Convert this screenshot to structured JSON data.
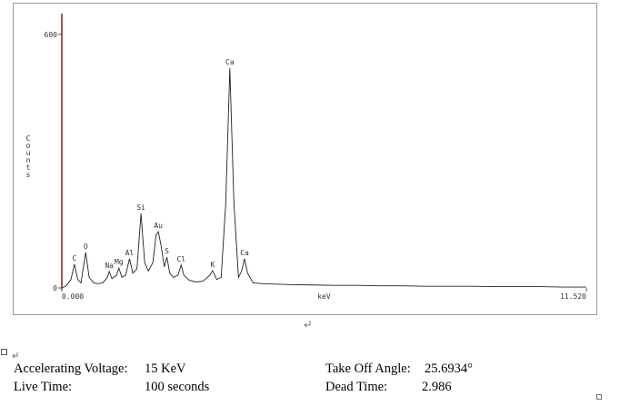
{
  "chart_data": {
    "type": "line",
    "ylabel": "Counts",
    "xlabel": "keV",
    "x": [
      0.0,
      0.1,
      0.2,
      0.277,
      0.35,
      0.42,
      0.525,
      0.6,
      0.7,
      0.8,
      0.9,
      1.0,
      1.041,
      1.1,
      1.2,
      1.253,
      1.32,
      1.4,
      1.486,
      1.56,
      1.65,
      1.739,
      1.82,
      1.9,
      2.0,
      2.07,
      2.12,
      2.18,
      2.25,
      2.307,
      2.37,
      2.45,
      2.55,
      2.621,
      2.68,
      2.8,
      2.95,
      3.1,
      3.25,
      3.312,
      3.4,
      3.5,
      3.6,
      3.69,
      3.78,
      3.88,
      3.95,
      4.012,
      4.08,
      4.2,
      4.4,
      4.7,
      5.0,
      5.5,
      6.0,
      6.5,
      7.0,
      7.5,
      8.0,
      8.5,
      9.0,
      9.5,
      10.0,
      10.5,
      11.0,
      11.52
    ],
    "values": [
      0,
      5,
      20,
      56,
      20,
      12,
      84,
      25,
      12,
      10,
      12,
      25,
      39,
      22,
      30,
      47,
      25,
      30,
      69,
      35,
      45,
      176,
      60,
      40,
      60,
      125,
      133,
      100,
      50,
      73,
      35,
      25,
      30,
      54,
      30,
      18,
      14,
      16,
      30,
      41,
      20,
      25,
      200,
      520,
      200,
      25,
      40,
      69,
      35,
      12,
      10,
      9,
      8,
      7,
      6,
      6,
      5,
      5,
      4,
      4,
      4,
      3,
      3,
      3,
      2,
      2
    ],
    "color": "#222222",
    "axis_color": "#8b1a1a",
    "xlim": [
      0,
      11.52
    ],
    "ylim": [
      0,
      649
    ],
    "xticks": [
      {
        "value": 0,
        "label": "0.000"
      },
      {
        "value": 11.52,
        "label": "11.520"
      }
    ],
    "yticks": [
      0,
      600
    ],
    "annotations": [
      {
        "text": "C",
        "x": 0.277,
        "y": 56
      },
      {
        "text": "O",
        "x": 0.525,
        "y": 84
      },
      {
        "text": "Na",
        "x": 1.041,
        "y": 39
      },
      {
        "text": "Mg",
        "x": 1.253,
        "y": 47
      },
      {
        "text": "Al",
        "x": 1.486,
        "y": 69
      },
      {
        "text": "Si",
        "x": 1.739,
        "y": 176
      },
      {
        "text": "Au",
        "x": 2.12,
        "y": 133
      },
      {
        "text": "S",
        "x": 2.307,
        "y": 73
      },
      {
        "text": "Cl",
        "x": 2.621,
        "y": 54
      },
      {
        "text": "K",
        "x": 3.312,
        "y": 41
      },
      {
        "text": "Ca",
        "x": 3.69,
        "y": 520
      },
      {
        "text": "Ca",
        "x": 4.012,
        "y": 69
      }
    ]
  },
  "document": {
    "rows": [
      [
        "Accelerating Voltage:",
        "15 KeV",
        "Take Off Angle:",
        "25.6934°"
      ],
      [
        "Live Time:",
        "100 seconds",
        "Dead Time:",
        "2.986"
      ]
    ]
  }
}
